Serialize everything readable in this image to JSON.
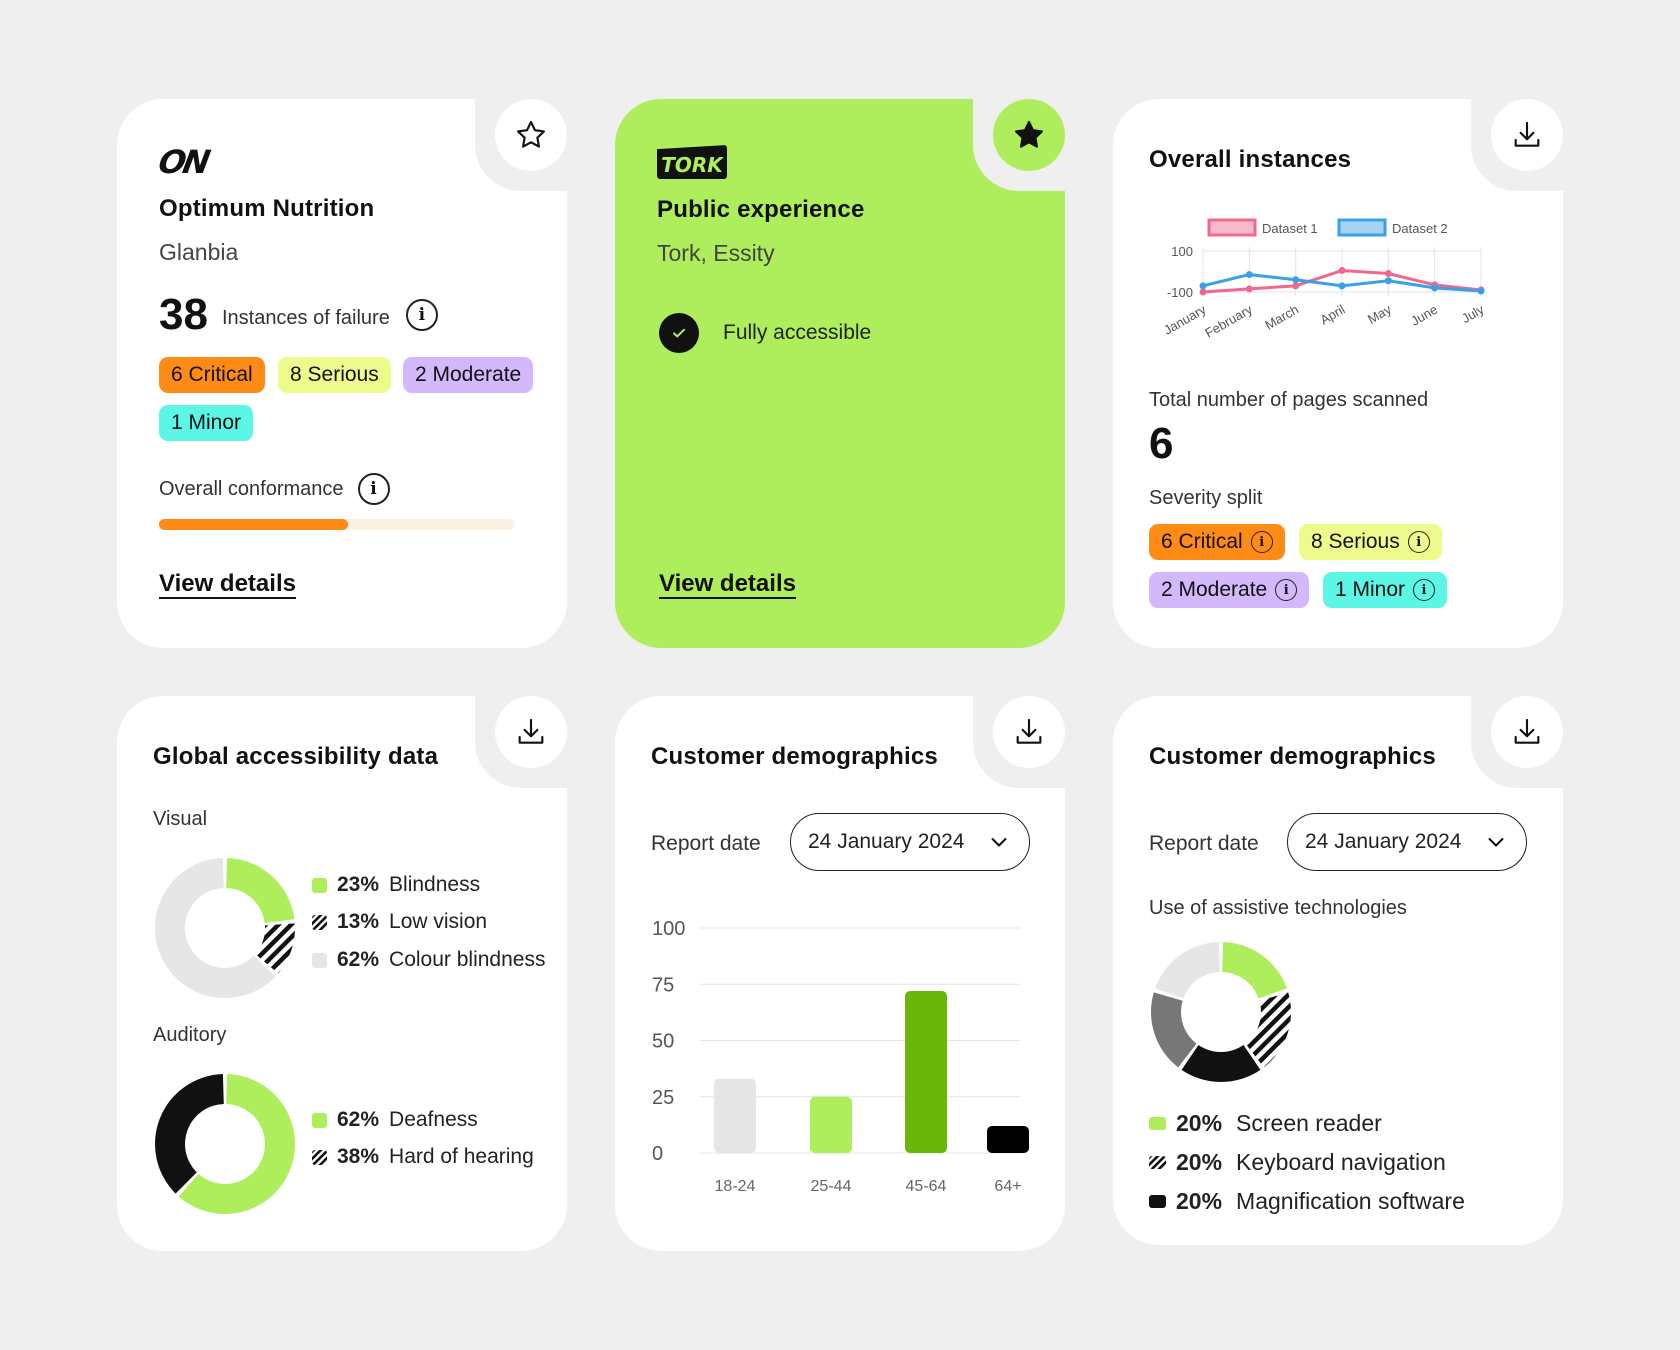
{
  "card1": {
    "brand": "ON",
    "title": "Optimum Nutrition",
    "subtitle": "Glanbia",
    "failure_count": "38",
    "failure_label": "Instances of failure",
    "badges": [
      {
        "label": "6 Critical",
        "color": "#ff8b17"
      },
      {
        "label": "8 Serious",
        "color": "#ecfb8c"
      },
      {
        "label": "2 Moderate",
        "color": "#d3b9fb"
      },
      {
        "label": "1 Minor",
        "color": "#5cf6e6"
      }
    ],
    "conformance_label": "Overall conformance",
    "conformance_fraction": 0.53,
    "view_details": "View details",
    "icons": {
      "favourite": "star-outline-icon",
      "info": "info-icon"
    }
  },
  "card2": {
    "brand": "TORK",
    "title": "Public experience",
    "subtitle": "Tork, Essity",
    "status": "Fully accessible",
    "view_details": "View details",
    "accent": "#aeee5c",
    "icons": {
      "favourite": "star-filled-icon",
      "status": "check-circle-icon"
    }
  },
  "card3": {
    "title": "Overall instances",
    "chart_data": {
      "type": "line",
      "categories": [
        "January",
        "February",
        "March",
        "April",
        "May",
        "June",
        "July"
      ],
      "series": [
        {
          "name": "Dataset 1",
          "color": "#f0688e",
          "values": [
            -100,
            -85,
            -70,
            5,
            -10,
            -65,
            -90
          ]
        },
        {
          "name": "Dataset 2",
          "color": "#39a0ea",
          "values": [
            -70,
            -15,
            -40,
            -70,
            -45,
            -80,
            -95
          ]
        }
      ],
      "ytick_labels": [
        "100",
        "-100"
      ],
      "ylim": [
        -100,
        100
      ],
      "legend": "top",
      "grid": true
    },
    "pages_label": "Total number of pages scanned",
    "pages_value": "6",
    "severity_label": "Severity split",
    "badges": [
      {
        "label": "6 Critical",
        "color": "#ff8b17"
      },
      {
        "label": "8 Serious",
        "color": "#ecfb8c"
      },
      {
        "label": "2 Moderate",
        "color": "#d3b9fb"
      },
      {
        "label": "1 Minor",
        "color": "#5cf6e6"
      }
    ],
    "icons": {
      "download": "download-icon"
    }
  },
  "card4": {
    "title": "Global accessibility data",
    "visual_label": "Visual",
    "auditory_label": "Auditory",
    "visual": [
      {
        "pct": "23%",
        "label": "Blindness",
        "value": 23,
        "style": "green"
      },
      {
        "pct": "13%",
        "label": "Low vision",
        "value": 13,
        "style": "hatch"
      },
      {
        "pct": "62%",
        "label": "Colour blindness",
        "value": 62,
        "style": "gray"
      }
    ],
    "auditory": [
      {
        "pct": "62%",
        "label": "Deafness",
        "value": 62,
        "style": "green"
      },
      {
        "pct": "38%",
        "label": "Hard of hearing",
        "value": 38,
        "style": "hatch"
      }
    ],
    "icons": {
      "download": "download-icon"
    }
  },
  "card5": {
    "title": "Customer demographics",
    "report_label": "Report date",
    "report_date": "24 January 2024",
    "chart_data": {
      "type": "bar",
      "categories": [
        "18-24",
        "25-44",
        "45-64",
        "64+"
      ],
      "values": [
        33,
        25,
        72,
        12
      ],
      "colors": [
        "#e6e6e6",
        "#aeee5c",
        "#6ab70a",
        "#000000"
      ],
      "ytick_labels": [
        "100",
        "75",
        "50",
        "25",
        "0"
      ],
      "ylim": [
        0,
        100
      ],
      "grid": true
    },
    "icons": {
      "download": "download-icon",
      "chevron": "chevron-down-icon"
    }
  },
  "card6": {
    "title": "Customer demographics",
    "report_label": "Report date",
    "report_date": "24 January 2024",
    "assistive_label": "Use of assistive technologies",
    "items": [
      {
        "pct": "20%",
        "label": "Screen reader",
        "style": "green"
      },
      {
        "pct": "20%",
        "label": "Keyboard navigation",
        "style": "hatch"
      },
      {
        "pct": "20%",
        "label": "Magnification software",
        "style": "black"
      }
    ],
    "icons": {
      "download": "download-icon",
      "chevron": "chevron-down-icon"
    }
  }
}
